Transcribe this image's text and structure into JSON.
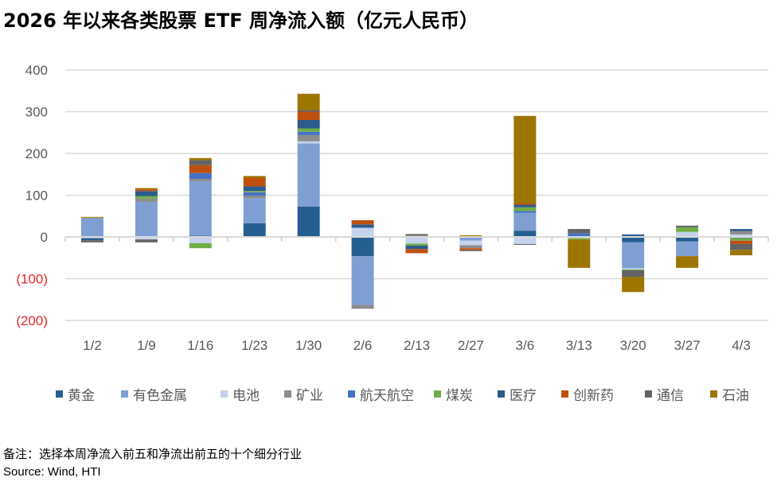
{
  "title": "2026 年以来各类股票 ETF 周净流入额（亿元人民币）",
  "note": "备注：选择本周净流入前五和净流出前五的十个细分行业",
  "source": "Source: Wind, HTI",
  "chart_data": {
    "type": "bar",
    "stacked": true,
    "title": "2026 年以来各类股票 ETF 周净流入额（亿元人民币）",
    "categories": [
      "1/2",
      "1/9",
      "1/16",
      "1/23",
      "1/30",
      "2/6",
      "2/13",
      "2/27",
      "3/6",
      "3/13",
      "3/20",
      "3/27",
      "4/3"
    ],
    "ylim": [
      -200,
      400
    ],
    "yticks": [
      400,
      300,
      200,
      100,
      0,
      -100,
      -200
    ],
    "ytick_labels": [
      "400",
      "300",
      "200",
      "100",
      "0",
      "(100)",
      "(200)"
    ],
    "negative_tick_color": "#e8262a",
    "grid": true,
    "legend": "bottom",
    "series": [
      {
        "name": "黄金",
        "color": "#255e91",
        "values": [
          0,
          0,
          3,
          33,
          73,
          -46,
          0,
          0,
          15,
          0,
          -13,
          -11,
          0
        ]
      },
      {
        "name": "有色金属",
        "color": "#7f9fd3",
        "values": [
          45,
          84,
          130,
          60,
          151,
          -117,
          0,
          -9,
          43,
          0,
          -62,
          -35,
          0
        ]
      },
      {
        "name": "电池",
        "color": "#c5d3ec",
        "values": [
          -3,
          -6,
          -15,
          0,
          5,
          22,
          -16,
          -11,
          -17,
          -3,
          -3,
          12,
          6
        ]
      },
      {
        "name": "矿业",
        "color": "#8c8c8c",
        "values": [
          1,
          8,
          6,
          6,
          15,
          -9,
          4,
          -7,
          0,
          0,
          0,
          0,
          8
        ]
      },
      {
        "name": "航天航空",
        "color": "#4472c4",
        "values": [
          0,
          0,
          14,
          8,
          8,
          0,
          0,
          0,
          4,
          9,
          0,
          0,
          -3
        ]
      },
      {
        "name": "煤炭",
        "color": "#70ad47",
        "values": [
          0,
          6,
          -12,
          3,
          8,
          0,
          -5,
          0,
          9,
          -3,
          -2,
          11,
          -6
        ]
      },
      {
        "name": "医疗",
        "color": "#2a5c8e",
        "values": [
          -5,
          12,
          0,
          11,
          20,
          8,
          -8,
          0,
          6,
          0,
          6,
          0,
          5
        ]
      },
      {
        "name": "创新药",
        "color": "#c0500f",
        "values": [
          0,
          4,
          19,
          21,
          20,
          10,
          -10,
          -4,
          3,
          0,
          0,
          0,
          -8
        ]
      },
      {
        "name": "通信",
        "color": "#636363",
        "values": [
          -5,
          -7,
          12,
          0,
          4,
          0,
          3,
          -3,
          -2,
          10,
          -16,
          4,
          -14
        ]
      },
      {
        "name": "石油",
        "color": "#9c7600",
        "values": [
          2,
          3,
          5,
          4,
          39,
          0,
          0,
          4,
          210,
          -68,
          -36,
          -28,
          -13
        ]
      }
    ]
  }
}
